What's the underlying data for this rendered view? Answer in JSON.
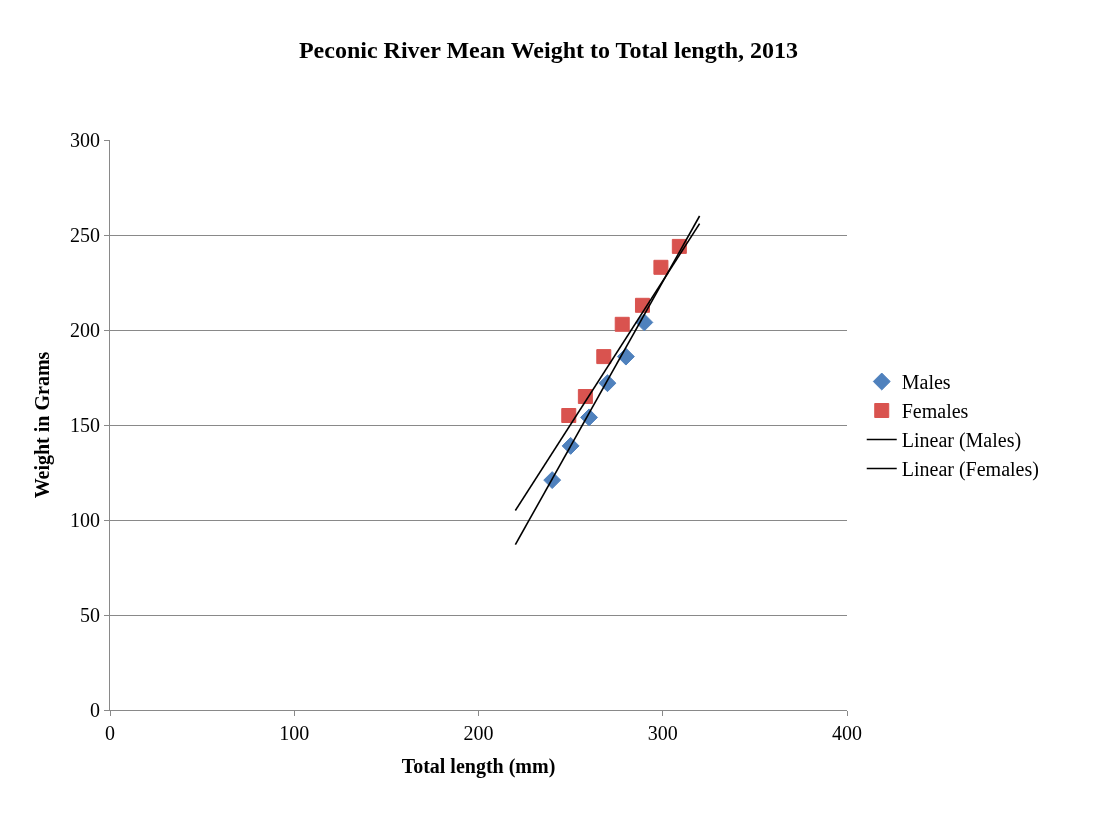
{
  "chart_data": {
    "type": "scatter",
    "title": "Peconic River Mean Weight to Total length, 2013",
    "xlabel": "Total length (mm)",
    "ylabel": "Weight in Grams",
    "xlim": [
      0,
      400
    ],
    "xticks": [
      0,
      100,
      200,
      300,
      400
    ],
    "ylim": [
      0,
      300
    ],
    "yticks": [
      0,
      50,
      100,
      150,
      200,
      250,
      300
    ],
    "grid": "y",
    "legend": "right",
    "series": [
      {
        "name": "Males",
        "marker": "diamond",
        "color": "#4f81bd",
        "x": [
          240,
          250,
          260,
          270,
          280,
          290
        ],
        "values": [
          121,
          139,
          154,
          172,
          186,
          204
        ]
      },
      {
        "name": "Females",
        "marker": "square",
        "color": "#d9534f",
        "x": [
          249,
          258,
          268,
          278,
          289,
          299,
          309
        ],
        "values": [
          155,
          165,
          186,
          203,
          213,
          233,
          244
        ]
      },
      {
        "name": "Linear (Males)",
        "type": "line",
        "marker": "none",
        "color": "#000000",
        "x": [
          220,
          320
        ],
        "values": [
          87,
          260
        ]
      },
      {
        "name": "Linear (Females)",
        "type": "line",
        "marker": "none",
        "color": "#000000",
        "x": [
          220,
          320
        ],
        "values": [
          105,
          256
        ]
      }
    ]
  }
}
